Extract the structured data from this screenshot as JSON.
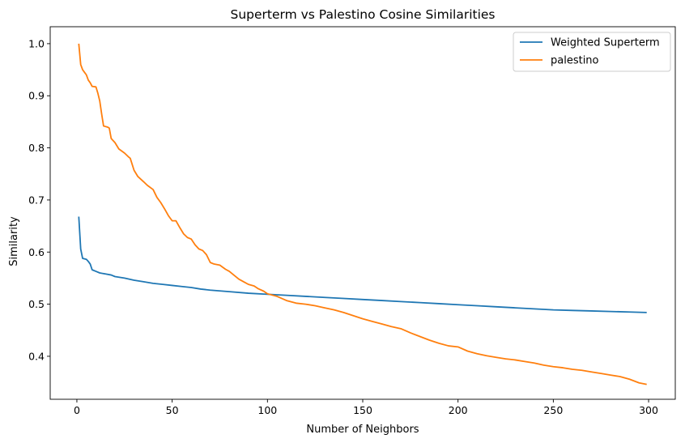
{
  "chart_data": {
    "type": "line",
    "title": "Superterm vs Palestino Cosine Similarities",
    "xlabel": "Number of Neighbors",
    "ylabel": "Similarity",
    "xlim": [
      -14,
      314
    ],
    "ylim": [
      0.3175,
      1.0325
    ],
    "xticks": [
      0,
      50,
      100,
      150,
      200,
      250,
      300
    ],
    "yticks": [
      0.4,
      0.5,
      0.6,
      0.7,
      0.8,
      0.9,
      1.0
    ],
    "xtick_labels": [
      "0",
      "50",
      "100",
      "150",
      "200",
      "250",
      "300"
    ],
    "ytick_labels": [
      "0.4",
      "0.5",
      "0.6",
      "0.7",
      "0.8",
      "0.9",
      "1.0"
    ],
    "grid": false,
    "legend_position": "top-right",
    "series": [
      {
        "name": "Weighted Superterm",
        "color": "#1f77b4",
        "x": [
          1,
          2,
          3,
          4,
          5,
          6,
          7,
          8,
          10,
          12,
          15,
          18,
          20,
          25,
          30,
          35,
          40,
          45,
          50,
          55,
          60,
          65,
          70,
          80,
          90,
          100,
          110,
          120,
          130,
          140,
          150,
          160,
          170,
          180,
          190,
          200,
          210,
          220,
          230,
          240,
          250,
          260,
          270,
          280,
          290,
          299
        ],
        "values": [
          0.668,
          0.606,
          0.588,
          0.587,
          0.586,
          0.582,
          0.577,
          0.566,
          0.563,
          0.56,
          0.558,
          0.556,
          0.553,
          0.55,
          0.546,
          0.543,
          0.54,
          0.538,
          0.536,
          0.534,
          0.532,
          0.529,
          0.527,
          0.524,
          0.521,
          0.519,
          0.517,
          0.515,
          0.513,
          0.511,
          0.509,
          0.507,
          0.505,
          0.503,
          0.501,
          0.499,
          0.497,
          0.495,
          0.493,
          0.491,
          0.489,
          0.488,
          0.487,
          0.486,
          0.485,
          0.484
        ]
      },
      {
        "name": "palestino",
        "color": "#ff7f0e",
        "x": [
          1,
          2,
          3,
          4,
          5,
          6,
          7,
          8,
          10,
          11,
          12,
          13,
          14,
          16,
          17,
          18,
          20,
          22,
          25,
          27,
          28,
          30,
          32,
          35,
          37,
          40,
          42,
          44,
          46,
          48,
          50,
          52,
          54,
          56,
          58,
          60,
          62,
          64,
          66,
          68,
          70,
          72,
          75,
          78,
          80,
          82,
          85,
          88,
          90,
          93,
          95,
          98,
          100,
          105,
          110,
          115,
          120,
          125,
          130,
          135,
          140,
          145,
          150,
          155,
          160,
          165,
          170,
          175,
          180,
          185,
          190,
          195,
          200,
          205,
          210,
          215,
          220,
          225,
          230,
          235,
          240,
          245,
          250,
          255,
          260,
          265,
          270,
          275,
          280,
          285,
          290,
          295,
          299
        ],
        "values": [
          1.0,
          0.96,
          0.95,
          0.945,
          0.94,
          0.93,
          0.925,
          0.918,
          0.917,
          0.905,
          0.89,
          0.865,
          0.842,
          0.84,
          0.838,
          0.818,
          0.81,
          0.798,
          0.79,
          0.783,
          0.78,
          0.757,
          0.745,
          0.735,
          0.728,
          0.72,
          0.705,
          0.695,
          0.683,
          0.67,
          0.66,
          0.66,
          0.647,
          0.635,
          0.628,
          0.625,
          0.614,
          0.606,
          0.603,
          0.595,
          0.58,
          0.577,
          0.575,
          0.567,
          0.563,
          0.557,
          0.548,
          0.542,
          0.538,
          0.535,
          0.53,
          0.525,
          0.52,
          0.515,
          0.507,
          0.502,
          0.5,
          0.497,
          0.493,
          0.489,
          0.484,
          0.478,
          0.472,
          0.467,
          0.462,
          0.457,
          0.453,
          0.445,
          0.438,
          0.431,
          0.425,
          0.42,
          0.418,
          0.41,
          0.405,
          0.401,
          0.398,
          0.395,
          0.393,
          0.39,
          0.387,
          0.383,
          0.38,
          0.378,
          0.375,
          0.373,
          0.37,
          0.367,
          0.364,
          0.361,
          0.356,
          0.349,
          0.346
        ]
      }
    ]
  }
}
